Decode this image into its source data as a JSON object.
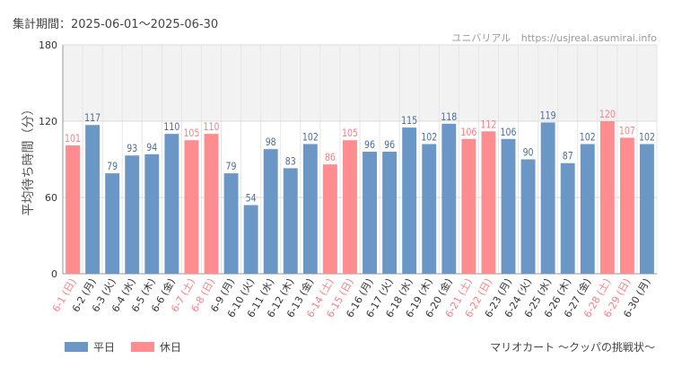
{
  "header": {
    "period_label": "集計期間：",
    "period_value": "2025-06-01～2025-06-30",
    "site_name": "ユニバリアル",
    "site_url": "https://usjreal.asumirai.info"
  },
  "footer": {
    "attraction": "マリオカート ～クッパの挑戦状～"
  },
  "colors": {
    "weekday": "#6b97c6",
    "holiday": "#ff8c8f",
    "holiday_label": "#ff7f84",
    "weekday_label": "#4a6e9a",
    "axis_text": "#333333"
  },
  "chart_data": {
    "type": "bar",
    "ylabel": "平均待ち時間（分）",
    "ylim": [
      0,
      180
    ],
    "yticks": [
      0,
      60,
      120,
      180
    ],
    "shaded_band": [
      120,
      180
    ],
    "grid": true,
    "legend_position": "bottom-left",
    "categories": [
      "6-1 (日)",
      "6-2 (月)",
      "6-3 (火)",
      "6-4 (水)",
      "6-5 (木)",
      "6-6 (金)",
      "6-7 (土)",
      "6-8 (日)",
      "6-9 (月)",
      "6-10 (火)",
      "6-11 (水)",
      "6-12 (木)",
      "6-13 (金)",
      "6-14 (土)",
      "6-15 (日)",
      "6-16 (月)",
      "6-17 (火)",
      "6-18 (水)",
      "6-19 (木)",
      "6-20 (金)",
      "6-21 (土)",
      "6-22 (日)",
      "6-23 (月)",
      "6-24 (火)",
      "6-25 (水)",
      "6-26 (木)",
      "6-27 (金)",
      "6-28 (土)",
      "6-29 (日)",
      "6-30 (月)"
    ],
    "values": [
      101,
      117,
      79,
      93,
      94,
      110,
      105,
      110,
      79,
      54,
      98,
      83,
      102,
      86,
      105,
      96,
      96,
      115,
      102,
      118,
      106,
      112,
      106,
      90,
      119,
      87,
      102,
      120,
      107,
      102
    ],
    "day_type": [
      "holiday",
      "weekday",
      "weekday",
      "weekday",
      "weekday",
      "weekday",
      "holiday",
      "holiday",
      "weekday",
      "weekday",
      "weekday",
      "weekday",
      "weekday",
      "holiday",
      "holiday",
      "weekday",
      "weekday",
      "weekday",
      "weekday",
      "weekday",
      "holiday",
      "holiday",
      "weekday",
      "weekday",
      "weekday",
      "weekday",
      "weekday",
      "holiday",
      "holiday",
      "weekday"
    ],
    "series": [
      {
        "name": "平日",
        "key": "weekday"
      },
      {
        "name": "休日",
        "key": "holiday"
      }
    ]
  }
}
